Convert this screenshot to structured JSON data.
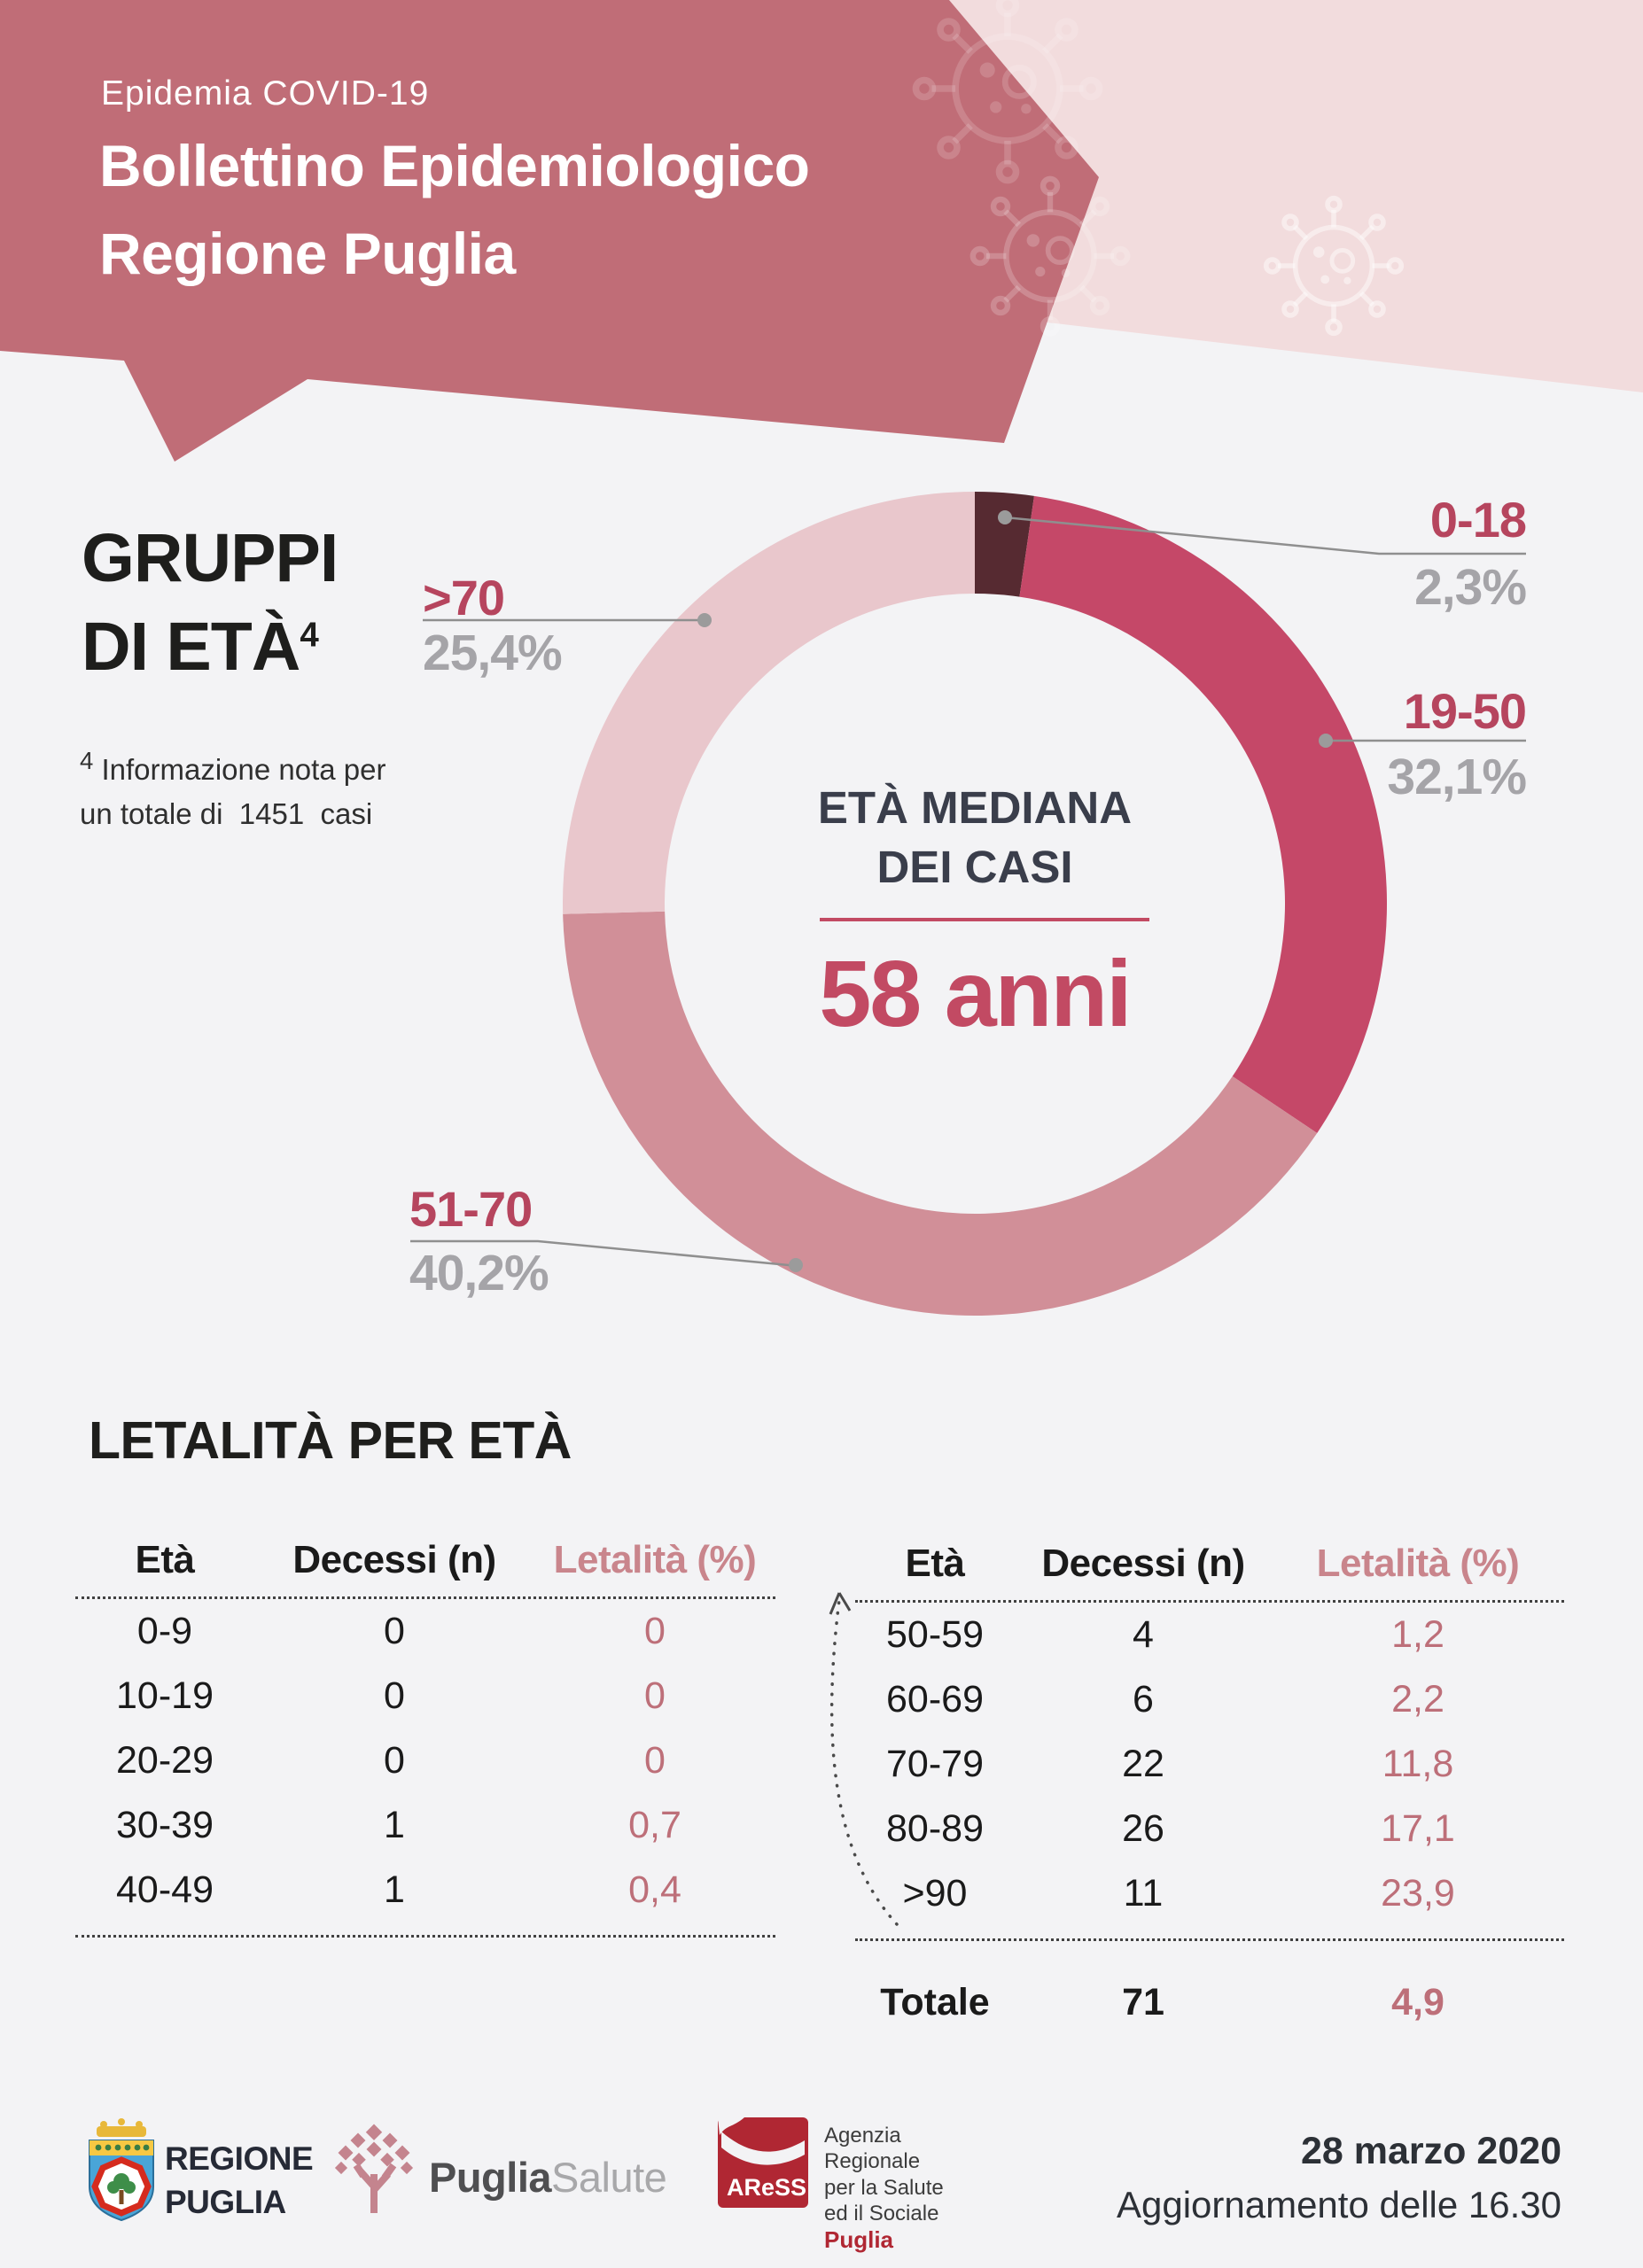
{
  "page": {
    "bg": "#f3f3f5"
  },
  "header": {
    "kicker": "Epidemia COVID-19",
    "title_line1": "Bollettino Epidemiologico",
    "title_line2": "Regione Puglia",
    "bg_color": "#c06d77",
    "panel_color": "#f2dcdd"
  },
  "age_groups": {
    "heading_line1": "GRUPPI",
    "heading_line2": "DI ETÀ",
    "heading_sup": "4",
    "footnote_sup": "4",
    "footnote_line1": " Informazione nota per",
    "footnote_line2": "un totale di  1451  casi"
  },
  "chart_data": {
    "type": "pie",
    "subtype": "donut",
    "title": "GRUPPI DI ETÀ",
    "unit": "%",
    "clockwise": true,
    "start_angle_deg": 0,
    "slices": [
      {
        "label": "0-18",
        "value": 2.3,
        "display": "2,3%",
        "color": "#562a31"
      },
      {
        "label": "19-50",
        "value": 32.1,
        "display": "32,1%",
        "color": "#c54868"
      },
      {
        "label": "51-70",
        "value": 40.2,
        "display": "40,2%",
        "color": "#d18f98"
      },
      {
        "label": ">70",
        "value": 25.4,
        "display": "25,4%",
        "color": "#e9c7cc"
      }
    ],
    "center_label_line1": "ETÀ MEDIANA",
    "center_label_line2": "DEI CASI",
    "center_value": "58 anni"
  },
  "letality": {
    "title": "LETALITÀ PER ETÀ",
    "col_headers": [
      "Età",
      "Decessi (n)",
      "Letalità (%)"
    ],
    "left_rows": [
      [
        "0-9",
        "0",
        "0"
      ],
      [
        "10-19",
        "0",
        "0"
      ],
      [
        "20-29",
        "0",
        "0"
      ],
      [
        "30-39",
        "1",
        "0,7"
      ],
      [
        "40-49",
        "1",
        "0,4"
      ]
    ],
    "right_rows": [
      [
        "50-59",
        "4",
        "1,2"
      ],
      [
        "60-69",
        "6",
        "2,2"
      ],
      [
        "70-79",
        "22",
        "11,8"
      ],
      [
        "80-89",
        "26",
        "17,1"
      ],
      [
        ">90",
        "11",
        "23,9"
      ]
    ],
    "total_row": [
      "Totale",
      "71",
      "4,9"
    ]
  },
  "footer": {
    "regione_line1": "REGIONE",
    "regione_line2": "PUGLIA",
    "puglia_salute_part1": "Puglia",
    "puglia_salute_part2": "Salute",
    "aress_logo_text": "AReSS",
    "aress_line1": "Agenzia",
    "aress_line2": "Regionale",
    "aress_line3": "per la Salute",
    "aress_line4": "ed il Sociale",
    "aress_line5": "Puglia",
    "date_line1": "28 marzo 2020",
    "date_line2": "Aggiornamento delle 16.30"
  }
}
